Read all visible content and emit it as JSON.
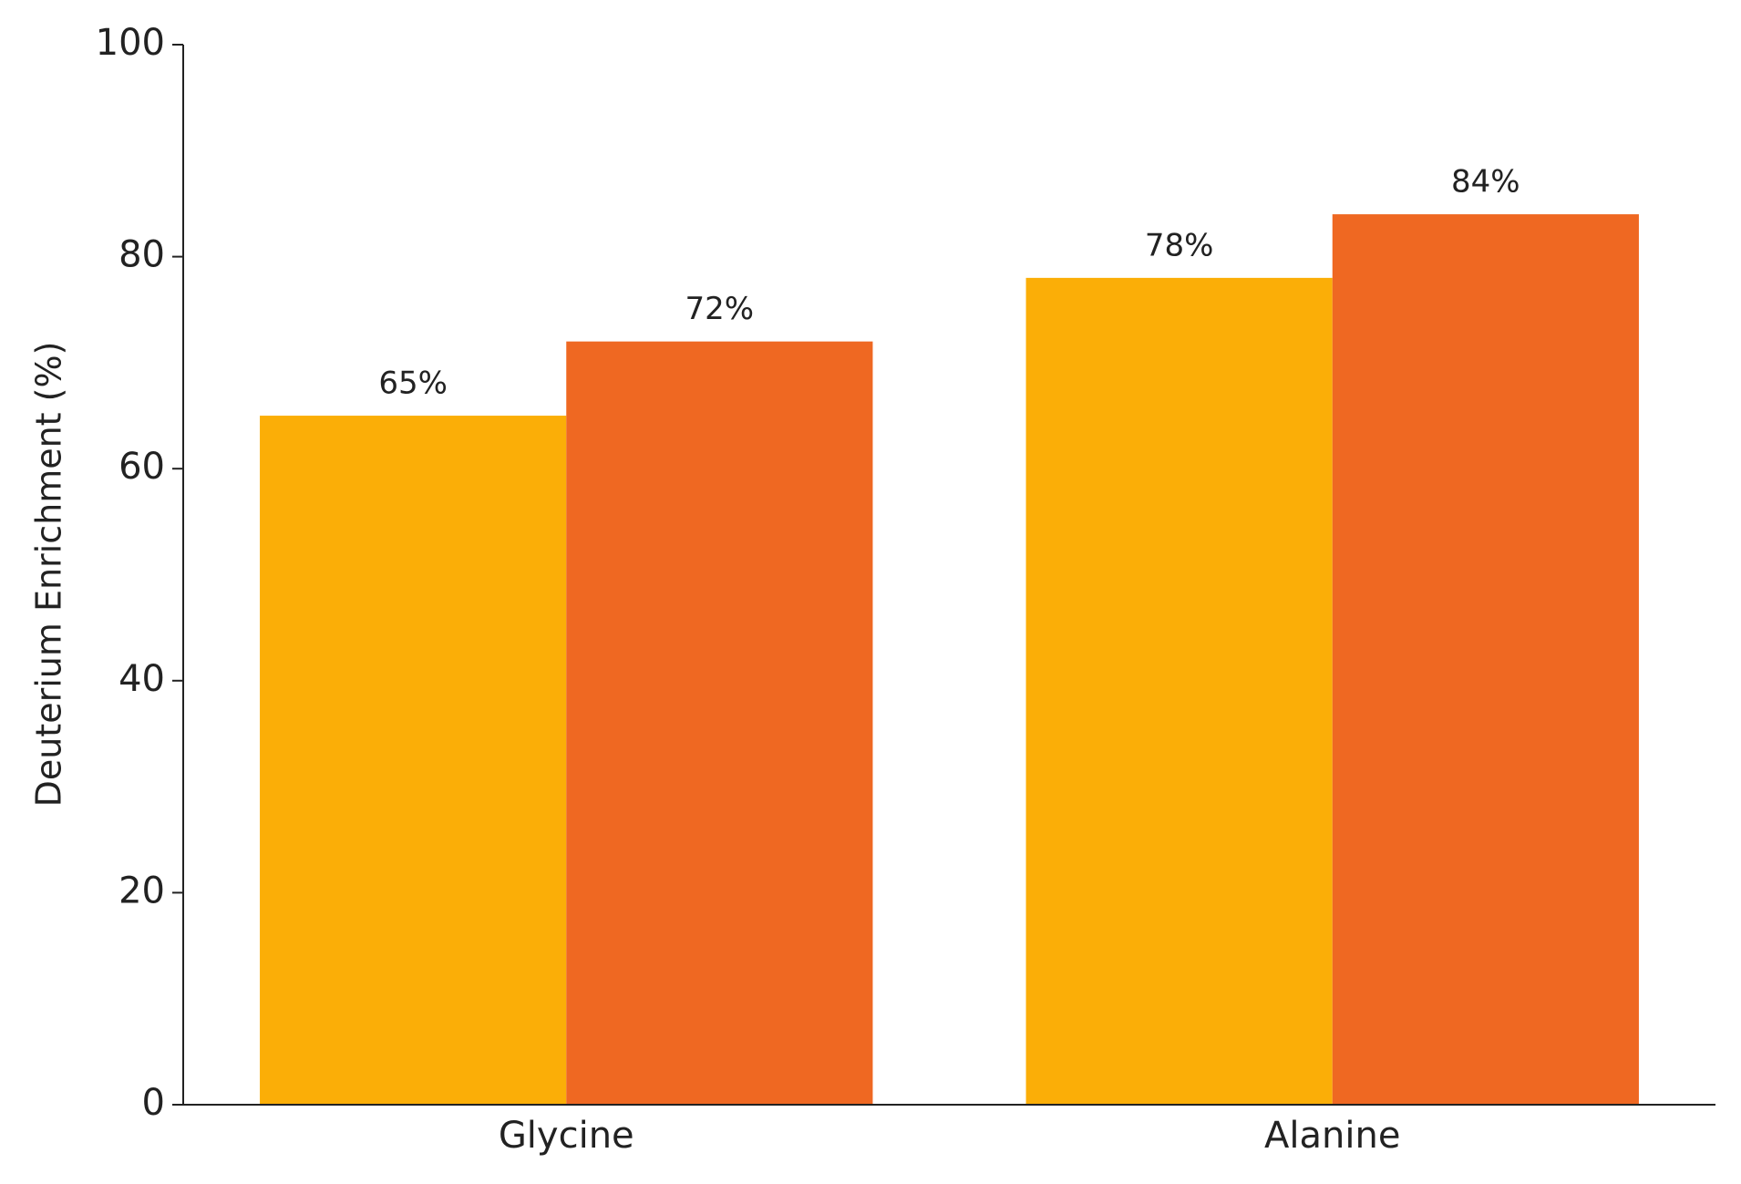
{
  "chart_data": {
    "type": "bar",
    "ylabel": "Deuterium Enrichment (%)",
    "categories": [
      "Glycine",
      "Alanine"
    ],
    "series": [
      {
        "color": "#fbae07",
        "values": [
          65,
          78
        ],
        "value_labels": [
          "65%",
          "78%"
        ]
      },
      {
        "color": "#ef6822",
        "values": [
          72,
          84
        ],
        "value_labels": [
          "72%",
          "84%"
        ]
      }
    ],
    "ylim": [
      0,
      100
    ],
    "yticks": [
      0,
      20,
      40,
      60,
      80,
      100
    ]
  }
}
